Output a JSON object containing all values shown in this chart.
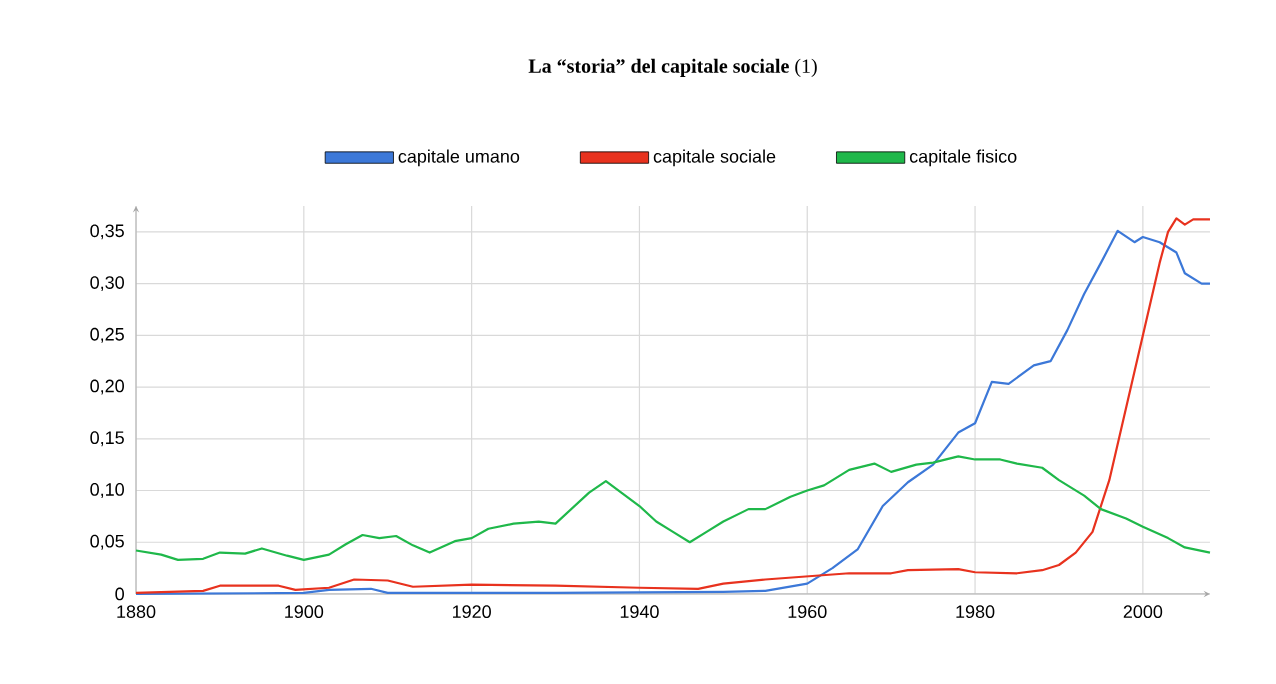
{
  "chart_data": {
    "type": "line",
    "title": "**La “storia” del capitale sociale** (1)",
    "xlim": [
      1880,
      2008
    ],
    "ylim": [
      0,
      0.375
    ],
    "xticks": [
      1880,
      1900,
      1920,
      1940,
      1960,
      1980,
      2000
    ],
    "yticks": [
      {
        "value": 0,
        "label": "0"
      },
      {
        "value": 0.05,
        "label": "0,05"
      },
      {
        "value": 0.1,
        "label": "0,10"
      },
      {
        "value": 0.15,
        "label": "0,15"
      },
      {
        "value": 0.2,
        "label": "0,20"
      },
      {
        "value": 0.25,
        "label": "0,25"
      },
      {
        "value": 0.3,
        "label": "0,30"
      },
      {
        "value": 0.35,
        "label": "0,35"
      }
    ],
    "grid": true,
    "legend": "top",
    "marker": "none",
    "line_style": "solid",
    "series": [
      {
        "name": "capitale umano",
        "color": "#3c78d8",
        "x": [
          1880,
          1900,
          1903,
          1908,
          1910,
          1930,
          1950,
          1955,
          1960,
          1963,
          1966,
          1969,
          1972,
          1975,
          1978,
          1980,
          1982,
          1984,
          1987,
          1989,
          1991,
          1993,
          1995,
          1997,
          1999,
          2000,
          2002,
          2004,
          2005,
          2007,
          2008
        ],
        "values": [
          0,
          0.001,
          0.004,
          0.005,
          0.001,
          0.001,
          0.002,
          0.003,
          0.01,
          0.025,
          0.043,
          0.085,
          0.108,
          0.125,
          0.156,
          0.165,
          0.205,
          0.203,
          0.221,
          0.225,
          0.255,
          0.29,
          0.32,
          0.351,
          0.34,
          0.345,
          0.34,
          0.33,
          0.31,
          0.3,
          0.3
        ]
      },
      {
        "name": "capitale sociale",
        "color": "#e8321e",
        "x": [
          1880,
          1888,
          1890,
          1897,
          1899,
          1903,
          1906,
          1910,
          1913,
          1920,
          1930,
          1940,
          1947,
          1950,
          1955,
          1960,
          1965,
          1970,
          1972,
          1978,
          1980,
          1985,
          1988,
          1990,
          1992,
          1994,
          1996,
          1998,
          2000,
          2002,
          2003,
          2004,
          2005,
          2006,
          2008
        ],
        "values": [
          0.001,
          0.003,
          0.008,
          0.008,
          0.004,
          0.006,
          0.014,
          0.013,
          0.007,
          0.009,
          0.008,
          0.006,
          0.005,
          0.01,
          0.014,
          0.017,
          0.02,
          0.02,
          0.023,
          0.024,
          0.021,
          0.02,
          0.023,
          0.028,
          0.04,
          0.06,
          0.11,
          0.18,
          0.25,
          0.32,
          0.35,
          0.363,
          0.357,
          0.362,
          0.362
        ]
      },
      {
        "name": "capitale fisico",
        "color": "#1fb84a",
        "x": [
          1880,
          1883,
          1885,
          1888,
          1890,
          1893,
          1895,
          1898,
          1900,
          1903,
          1905,
          1907,
          1909,
          1911,
          1913,
          1915,
          1918,
          1920,
          1922,
          1925,
          1928,
          1930,
          1932,
          1934,
          1936,
          1938,
          1940,
          1942,
          1944,
          1946,
          1948,
          1950,
          1953,
          1955,
          1958,
          1960,
          1962,
          1965,
          1968,
          1970,
          1973,
          1975,
          1978,
          1980,
          1983,
          1985,
          1988,
          1990,
          1993,
          1995,
          1998,
          2000,
          2003,
          2005,
          2008
        ],
        "values": [
          0.042,
          0.038,
          0.033,
          0.034,
          0.04,
          0.039,
          0.044,
          0.037,
          0.033,
          0.038,
          0.048,
          0.057,
          0.054,
          0.056,
          0.047,
          0.04,
          0.051,
          0.054,
          0.063,
          0.068,
          0.07,
          0.068,
          0.083,
          0.098,
          0.109,
          0.097,
          0.085,
          0.07,
          0.06,
          0.05,
          0.06,
          0.07,
          0.082,
          0.082,
          0.094,
          0.1,
          0.105,
          0.12,
          0.126,
          0.118,
          0.125,
          0.127,
          0.133,
          0.13,
          0.13,
          0.126,
          0.122,
          0.11,
          0.095,
          0.082,
          0.073,
          0.065,
          0.054,
          0.045,
          0.04
        ]
      }
    ]
  }
}
